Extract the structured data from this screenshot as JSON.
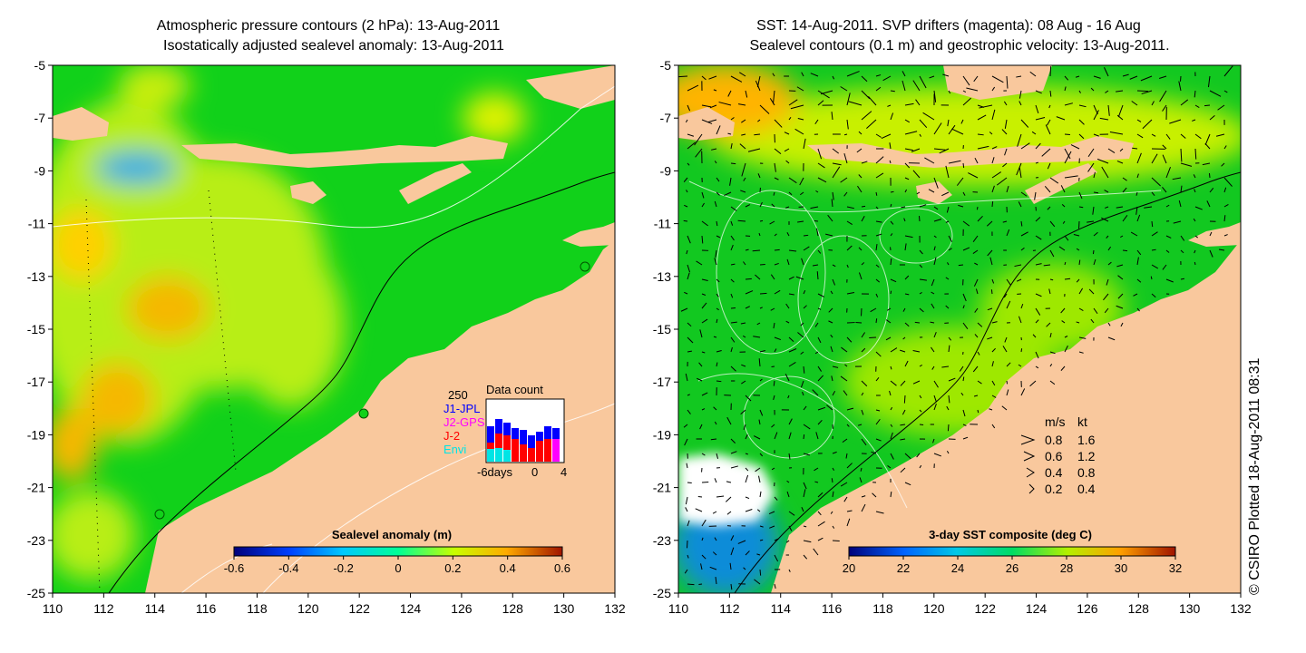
{
  "left_panel": {
    "title_line1": "Atmospheric pressure contours (2 hPa): 13-Aug-2011",
    "title_line2": "Isostatically adjusted sealevel anomaly: 13-Aug-2011",
    "colorbar": {
      "label": "Sealevel anomaly (m)",
      "ticks": [
        "-0.6",
        "-0.4",
        "-0.2",
        "0",
        "0.2",
        "0.4",
        "0.6"
      ],
      "colors": [
        "#00007a",
        "#0040ff",
        "#00c8ff",
        "#00ff96",
        "#c8ff00",
        "#ffaa00",
        "#a01400"
      ]
    },
    "inset": {
      "title": "Data count",
      "max_label": "250",
      "legend": [
        {
          "label": "J1-JPL",
          "color": "#0000ff"
        },
        {
          "label": "J2-GPS",
          "color": "#ff00ff"
        },
        {
          "label": "J-2",
          "color": "#ff0000"
        },
        {
          "label": "Envi",
          "color": "#00e5e5"
        }
      ],
      "x_labels": [
        "-6days",
        "0",
        "4"
      ]
    }
  },
  "right_panel": {
    "title_line1": "SST: 14-Aug-2011. SVP drifters (magenta): 08 Aug - 16 Aug",
    "title_line2": "Sealevel contours (0.1 m) and geostrophic velocity: 13-Aug-2011.",
    "colorbar": {
      "label": "3-day SST composite (deg C)",
      "ticks": [
        "20",
        "22",
        "24",
        "26",
        "28",
        "30",
        "32"
      ],
      "colors": [
        "#00007a",
        "#0064ff",
        "#00c8e6",
        "#00dc64",
        "#b4f000",
        "#ffa000",
        "#a01400"
      ]
    },
    "velocity_legend": {
      "header_ms": "m/s",
      "header_kt": "kt",
      "rows": [
        {
          "ms": "0.8",
          "kt": "1.6"
        },
        {
          "ms": "0.6",
          "kt": "1.2"
        },
        {
          "ms": "0.4",
          "kt": "0.8"
        },
        {
          "ms": "0.2",
          "kt": "0.4"
        }
      ]
    }
  },
  "axes": {
    "lat_labels": [
      "-5",
      "-7",
      "-9",
      "-11",
      "-13",
      "-15",
      "-17",
      "-19",
      "-21",
      "-23",
      "-25"
    ],
    "lon_labels": [
      "110",
      "112",
      "114",
      "116",
      "118",
      "120",
      "122",
      "124",
      "126",
      "128",
      "130",
      "132"
    ]
  },
  "credit": "© CSIRO Plotted 18-Aug-2011 08:31",
  "colors": {
    "land": "#f9c89d",
    "ocean_green": "#11d11a",
    "ocean_yellowgreen": "#b8ee12",
    "ocean_orange": "#f5b800",
    "cloud": "#ffffff"
  }
}
